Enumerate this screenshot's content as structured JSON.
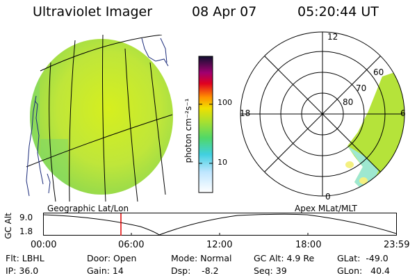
{
  "header": {
    "instrument": "Ultraviolet Imager",
    "date": "08 Apr 07",
    "time": "05:20:44 UT"
  },
  "left_panel": {
    "caption": "Geographic Lat/Lon"
  },
  "right_panel": {
    "caption": "Apex MLat/MLT",
    "lat_rings": [
      "80",
      "70",
      "60"
    ],
    "mlt_labels": {
      "top": "12",
      "left": "18",
      "right": "6",
      "bottom": "0"
    }
  },
  "colorbar": {
    "unit_label": "photon cm⁻²s⁻¹",
    "ticks": [
      "100",
      "10"
    ],
    "scale": "log"
  },
  "altitude_plot": {
    "ylabel": "GC Alt",
    "yticks": [
      "9.0",
      "1.8"
    ],
    "xticks": [
      "00:00",
      "06:00",
      "12:00",
      "18:00",
      "23:59"
    ],
    "marker_time": "05:20",
    "marker_color": "#e00000"
  },
  "params": {
    "flt": "Flt: LBHL",
    "ip": "IP: 36.0",
    "door": "Door: Open",
    "gain": "Gain: 14",
    "mode": "Mode: Normal",
    "dsp": "Dsp:    -8.2",
    "gc_alt": "GC Alt: 4.9 Re",
    "seq": "Seq: 39",
    "glat": "GLat:  -49.0",
    "glon": "GLon:   40.4"
  }
}
